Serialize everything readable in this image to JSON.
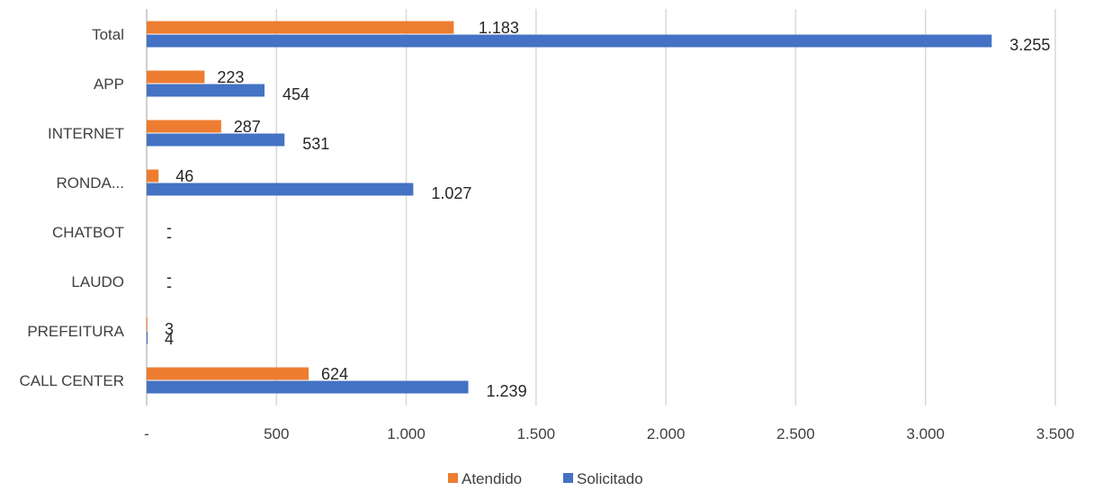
{
  "chart_data": {
    "type": "bar",
    "orientation": "horizontal",
    "categories": [
      "Total",
      "APP",
      "INTERNET",
      "RONDA...",
      "CHATBOT",
      "LAUDO",
      "PREFEITURA",
      "CALL CENTER"
    ],
    "series": [
      {
        "name": "Atendido",
        "color": "#ED7D31",
        "values": [
          1183,
          223,
          287,
          46,
          0,
          0,
          3,
          624
        ],
        "labels": [
          "1.183",
          "223",
          "287",
          "46",
          "-",
          "-",
          "3",
          "624"
        ]
      },
      {
        "name": "Solicitado",
        "color": "#4472C4",
        "values": [
          3255,
          454,
          531,
          1027,
          0,
          0,
          4,
          1239
        ],
        "labels": [
          "3.255",
          "454",
          "531",
          "1.027",
          "-",
          "-",
          "4",
          "1.239"
        ]
      }
    ],
    "x_ticks": [
      0,
      500,
      1000,
      1500,
      2000,
      2500,
      3000,
      3500
    ],
    "x_tick_labels": [
      "-",
      "500",
      "1.000",
      "1.500",
      "2.000",
      "2.500",
      "3.000",
      "3.500"
    ],
    "xlim": [
      0,
      3500
    ],
    "grid": true,
    "legend_position": "bottom"
  }
}
